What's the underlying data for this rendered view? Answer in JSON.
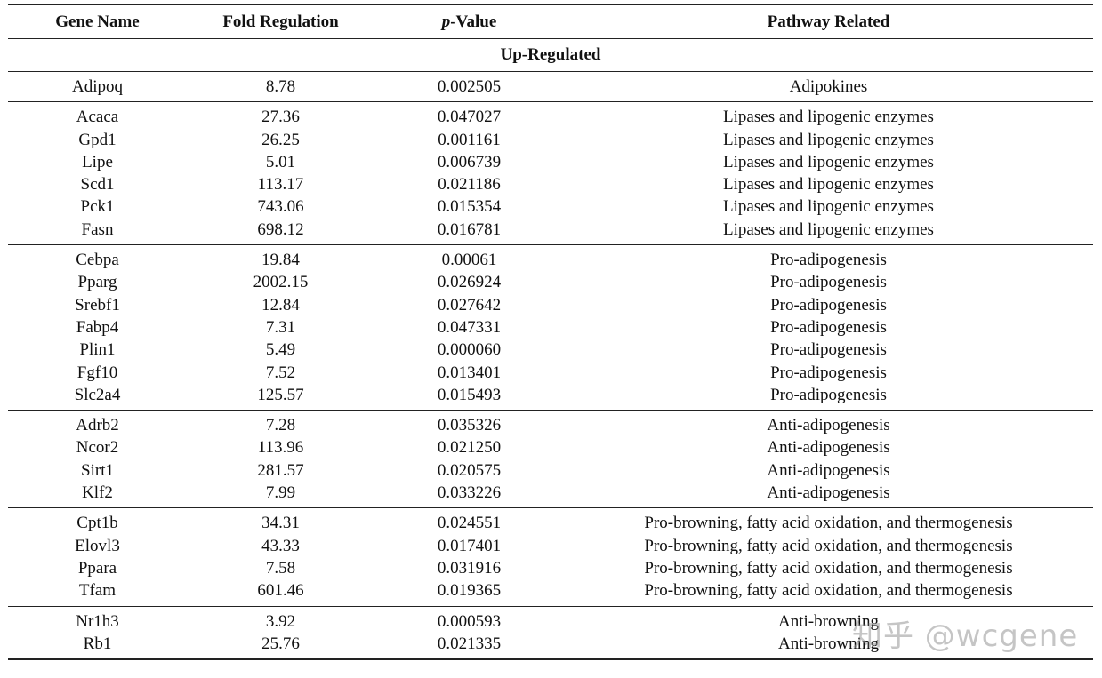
{
  "headers": {
    "gene": "Gene Name",
    "fold": "Fold Regulation",
    "p_prefix": "p",
    "p_suffix": "-Value",
    "pathway": "Pathway Related"
  },
  "section_label": "Up-Regulated",
  "groups": [
    {
      "rows": [
        {
          "gene": "Adipoq",
          "fold": "8.78",
          "p": "0.002505",
          "pathway": "Adipokines"
        }
      ]
    },
    {
      "rows": [
        {
          "gene": "Acaca",
          "fold": "27.36",
          "p": "0.047027",
          "pathway": "Lipases and lipogenic enzymes"
        },
        {
          "gene": "Gpd1",
          "fold": "26.25",
          "p": "0.001161",
          "pathway": "Lipases and lipogenic enzymes"
        },
        {
          "gene": "Lipe",
          "fold": "5.01",
          "p": "0.006739",
          "pathway": "Lipases and lipogenic enzymes"
        },
        {
          "gene": "Scd1",
          "fold": "113.17",
          "p": "0.021186",
          "pathway": "Lipases and lipogenic enzymes"
        },
        {
          "gene": "Pck1",
          "fold": "743.06",
          "p": "0.015354",
          "pathway": "Lipases and lipogenic enzymes"
        },
        {
          "gene": "Fasn",
          "fold": "698.12",
          "p": "0.016781",
          "pathway": "Lipases and lipogenic enzymes"
        }
      ]
    },
    {
      "rows": [
        {
          "gene": "Cebpa",
          "fold": "19.84",
          "p": "0.00061",
          "pathway": "Pro-adipogenesis"
        },
        {
          "gene": "Pparg",
          "fold": "2002.15",
          "p": "0.026924",
          "pathway": "Pro-adipogenesis"
        },
        {
          "gene": "Srebf1",
          "fold": "12.84",
          "p": "0.027642",
          "pathway": "Pro-adipogenesis"
        },
        {
          "gene": "Fabp4",
          "fold": "7.31",
          "p": "0.047331",
          "pathway": "Pro-adipogenesis"
        },
        {
          "gene": "Plin1",
          "fold": "5.49",
          "p": "0.000060",
          "pathway": "Pro-adipogenesis"
        },
        {
          "gene": "Fgf10",
          "fold": "7.52",
          "p": "0.013401",
          "pathway": "Pro-adipogenesis"
        },
        {
          "gene": "Slc2a4",
          "fold": "125.57",
          "p": "0.015493",
          "pathway": "Pro-adipogenesis"
        }
      ]
    },
    {
      "rows": [
        {
          "gene": "Adrb2",
          "fold": "7.28",
          "p": "0.035326",
          "pathway": "Anti-adipogenesis"
        },
        {
          "gene": "Ncor2",
          "fold": "113.96",
          "p": "0.021250",
          "pathway": "Anti-adipogenesis"
        },
        {
          "gene": "Sirt1",
          "fold": "281.57",
          "p": "0.020575",
          "pathway": "Anti-adipogenesis"
        },
        {
          "gene": "Klf2",
          "fold": "7.99",
          "p": "0.033226",
          "pathway": "Anti-adipogenesis"
        }
      ]
    },
    {
      "rows": [
        {
          "gene": "Cpt1b",
          "fold": "34.31",
          "p": "0.024551",
          "pathway": "Pro-browning, fatty acid oxidation, and thermogenesis"
        },
        {
          "gene": "Elovl3",
          "fold": "43.33",
          "p": "0.017401",
          "pathway": "Pro-browning, fatty acid oxidation, and thermogenesis"
        },
        {
          "gene": "Ppara",
          "fold": "7.58",
          "p": "0.031916",
          "pathway": "Pro-browning, fatty acid oxidation, and thermogenesis"
        },
        {
          "gene": "Tfam",
          "fold": "601.46",
          "p": "0.019365",
          "pathway": "Pro-browning, fatty acid oxidation, and thermogenesis"
        }
      ]
    },
    {
      "rows": [
        {
          "gene": "Nr1h3",
          "fold": "3.92",
          "p": "0.000593",
          "pathway": "Anti-browning"
        },
        {
          "gene": "Rb1",
          "fold": "25.76",
          "p": "0.021335",
          "pathway": "Anti-browning"
        }
      ]
    }
  ],
  "watermark": "知乎 @wcgene"
}
